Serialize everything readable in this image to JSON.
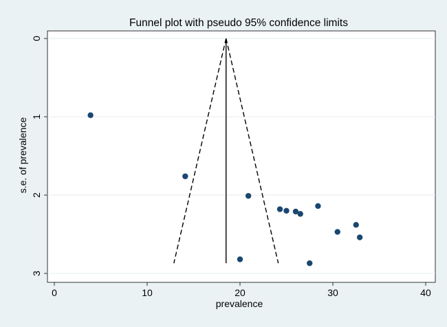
{
  "chart_data": {
    "type": "scatter",
    "title": "Funnel plot with pseudo 95% confidence limits",
    "xlabel": "prevalence",
    "ylabel": "s.e. of prevalence",
    "xlim": [
      0,
      40
    ],
    "ylim": [
      3,
      0
    ],
    "y_axis_reversed": true,
    "xticks": [
      0,
      10,
      20,
      30,
      40
    ],
    "yticks": [
      0,
      1,
      2,
      3
    ],
    "grid": "horizontal",
    "pooled_estimate": 18.5,
    "pseudo_ci_level": 0.95,
    "pseudo_ci_max_se": 2.87,
    "points": [
      {
        "x": 3.9,
        "y": 0.98
      },
      {
        "x": 14.1,
        "y": 1.76
      },
      {
        "x": 20.9,
        "y": 2.01
      },
      {
        "x": 24.3,
        "y": 2.18
      },
      {
        "x": 25.0,
        "y": 2.2
      },
      {
        "x": 26.0,
        "y": 2.21
      },
      {
        "x": 26.5,
        "y": 2.24
      },
      {
        "x": 28.4,
        "y": 2.14
      },
      {
        "x": 30.5,
        "y": 2.47
      },
      {
        "x": 32.5,
        "y": 2.38
      },
      {
        "x": 32.9,
        "y": 2.54
      },
      {
        "x": 20.0,
        "y": 2.82
      },
      {
        "x": 27.5,
        "y": 2.87
      }
    ],
    "colors": {
      "background": "#eaf2f3",
      "plot_area": "#ffffff",
      "grid": "#e6eeee",
      "marker": "#1a476f",
      "line": "#000000"
    }
  }
}
